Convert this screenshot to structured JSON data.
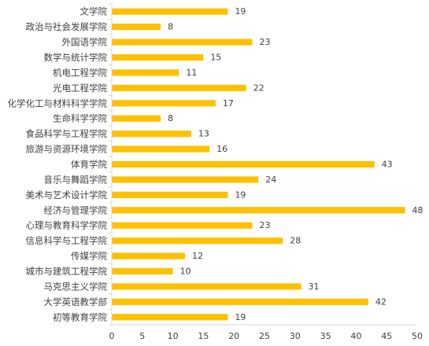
{
  "chart_data": {
    "type": "bar",
    "orientation": "horizontal",
    "categories": [
      "文学院",
      "政治与社会发展学院",
      "外国语学院",
      "数学与统计学院",
      "机电工程学院",
      "光电工程学院",
      "化学化工与材料科学学院",
      "生命科学学院",
      "食品科学与工程学院",
      "旅游与资源环境学院",
      "体育学院",
      "音乐与舞蹈学院",
      "美术与艺术设计学院",
      "经济与管理学院",
      "心理与教育科学学院",
      "信息科学与工程学院",
      "传媒学院",
      "城市与建筑工程学院",
      "马克思主义学院",
      "大学英语教学部",
      "初等教育学院"
    ],
    "values": [
      19,
      8,
      23,
      15,
      11,
      22,
      17,
      8,
      13,
      16,
      43,
      24,
      19,
      48,
      23,
      28,
      12,
      10,
      31,
      42,
      19
    ],
    "xlim": [
      0,
      50
    ],
    "xticks": [
      0,
      5,
      10,
      15,
      20,
      25,
      30,
      35,
      40,
      45,
      50
    ],
    "title": "",
    "xlabel": "",
    "ylabel": "",
    "grid": false,
    "legend": "none",
    "bar_color": "#FFC000",
    "axis_color": "#D9D9D9",
    "text_color": "#404040"
  }
}
